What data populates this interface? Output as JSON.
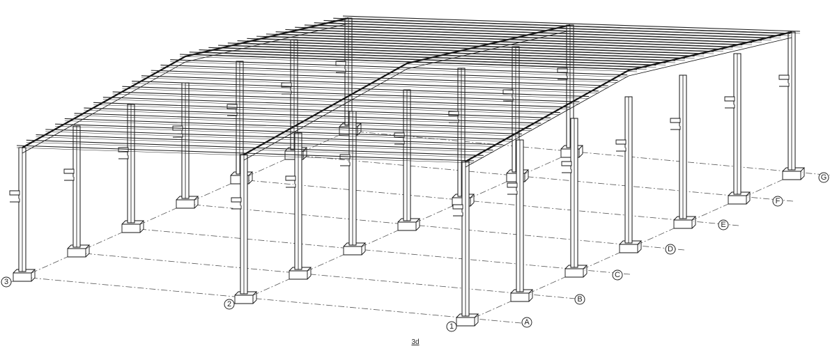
{
  "drawing": {
    "view_label": "3d"
  },
  "grid": {
    "numbers": [
      "1",
      "2",
      "3"
    ],
    "letters": [
      "A",
      "B",
      "C",
      "D",
      "E",
      "F",
      "G"
    ]
  }
}
